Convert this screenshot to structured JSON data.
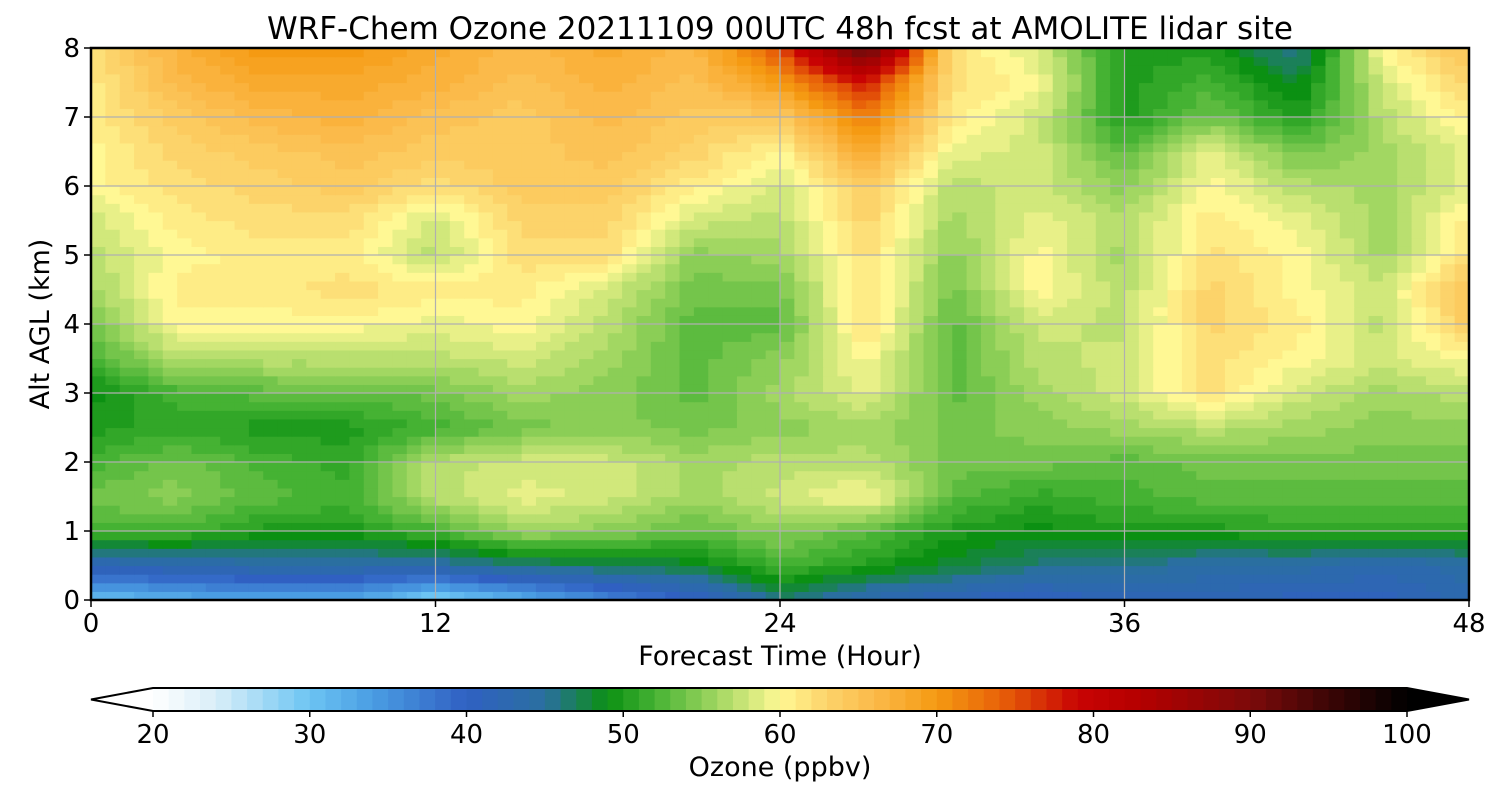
{
  "chart_data": {
    "type": "heatmap",
    "subtype": "filled-contour",
    "title": "WRF-Chem Ozone  20211109 00UTC 48h fcst at AMOLITE lidar site",
    "xlabel": "Forecast Time (Hour)",
    "ylabel": "Alt AGL (km)",
    "xlim": [
      0,
      48
    ],
    "ylim": [
      0,
      8
    ],
    "xticks": [
      0,
      12,
      24,
      36,
      48
    ],
    "yticks": [
      0,
      1,
      2,
      3,
      4,
      5,
      6,
      7,
      8
    ],
    "grid": true,
    "x": [
      0,
      3,
      6,
      9,
      12,
      15,
      18,
      21,
      24,
      27,
      30,
      33,
      36,
      39,
      42,
      45,
      48
    ],
    "y": [
      0,
      0.5,
      1,
      1.5,
      2,
      2.5,
      3,
      3.5,
      4,
      4.5,
      5,
      5.5,
      6,
      6.5,
      7,
      7.5,
      8
    ],
    "z": [
      [
        30,
        32,
        33,
        33,
        28,
        32,
        36,
        40,
        46,
        43,
        41,
        40,
        42,
        42,
        41,
        41,
        43
      ],
      [
        42,
        43,
        44,
        44,
        44,
        46,
        47,
        48,
        52,
        50,
        48,
        46,
        46,
        44,
        44,
        43,
        44
      ],
      [
        52,
        52,
        50,
        50,
        52,
        56,
        55,
        53,
        55,
        53,
        50,
        49,
        50,
        50,
        51,
        51,
        51
      ],
      [
        54,
        55,
        53,
        52,
        57,
        59,
        58,
        56,
        58,
        60,
        53,
        51,
        52,
        53,
        53,
        53,
        53
      ],
      [
        52,
        54,
        52,
        51,
        57,
        58,
        58,
        56,
        57,
        57,
        54,
        54,
        53,
        54,
        54,
        54,
        54
      ],
      [
        50,
        51,
        50,
        50,
        52,
        54,
        55,
        54,
        55,
        56,
        54,
        55,
        56,
        57,
        56,
        55,
        55
      ],
      [
        49,
        52,
        53,
        53,
        54,
        56,
        55,
        53,
        56,
        59,
        53,
        56,
        58,
        62,
        58,
        56,
        57
      ],
      [
        52,
        57,
        57,
        57,
        57,
        58,
        56,
        53,
        55,
        60,
        53,
        57,
        58,
        62,
        60,
        58,
        60
      ],
      [
        54,
        60,
        60,
        60,
        59,
        60,
        57,
        53,
        53,
        62,
        53,
        58,
        57,
        63,
        61,
        57,
        64
      ],
      [
        56,
        61,
        61,
        62,
        61,
        61,
        58,
        54,
        54,
        62,
        54,
        60,
        57,
        63,
        60,
        58,
        65
      ],
      [
        57,
        60,
        61,
        61,
        57,
        62,
        62,
        55,
        56,
        62,
        55,
        60,
        56,
        62,
        60,
        56,
        62
      ],
      [
        58,
        61,
        62,
        62,
        58,
        63,
        63,
        58,
        57,
        63,
        56,
        59,
        57,
        61,
        59,
        56,
        61
      ],
      [
        60,
        62,
        63,
        64,
        62,
        64,
        64,
        61,
        58,
        64,
        57,
        58,
        55,
        60,
        57,
        56,
        59
      ],
      [
        60,
        63,
        64,
        65,
        64,
        64,
        65,
        63,
        60,
        68,
        59,
        58,
        53,
        59,
        54,
        56,
        59
      ],
      [
        61,
        64,
        66,
        67,
        65,
        64,
        66,
        64,
        64,
        72,
        61,
        58,
        50,
        54,
        50,
        57,
        61
      ],
      [
        61,
        66,
        68,
        68,
        67,
        65,
        67,
        65,
        70,
        78,
        62,
        60,
        50,
        52,
        48,
        58,
        63
      ],
      [
        62,
        67,
        70,
        70,
        68,
        66,
        68,
        66,
        75,
        93,
        62,
        58,
        50,
        50,
        45,
        60,
        65
      ]
    ],
    "colorbar": {
      "label": "Ozone  (ppbv)",
      "min": 20,
      "max": 100,
      "ticks": [
        20,
        30,
        40,
        50,
        60,
        70,
        80,
        90,
        100
      ],
      "extend": "both",
      "stops": [
        {
          "v": 20,
          "c": "#ffffff"
        },
        {
          "v": 24,
          "c": "#d9eef8"
        },
        {
          "v": 30,
          "c": "#6cc4f3"
        },
        {
          "v": 34,
          "c": "#4a9de3"
        },
        {
          "v": 40,
          "c": "#3060c2"
        },
        {
          "v": 45,
          "c": "#2a6fa0"
        },
        {
          "v": 49,
          "c": "#0b9012"
        },
        {
          "v": 52,
          "c": "#45b233"
        },
        {
          "v": 56,
          "c": "#a2d762"
        },
        {
          "v": 60,
          "c": "#fff894"
        },
        {
          "v": 63,
          "c": "#fcd36a"
        },
        {
          "v": 66,
          "c": "#fbba4a"
        },
        {
          "v": 70,
          "c": "#f59a12"
        },
        {
          "v": 74,
          "c": "#e86209"
        },
        {
          "v": 79,
          "c": "#c80303"
        },
        {
          "v": 83,
          "c": "#b40000"
        },
        {
          "v": 90,
          "c": "#7c0a0a"
        },
        {
          "v": 95,
          "c": "#3c0505"
        },
        {
          "v": 100,
          "c": "#000000"
        }
      ]
    }
  }
}
